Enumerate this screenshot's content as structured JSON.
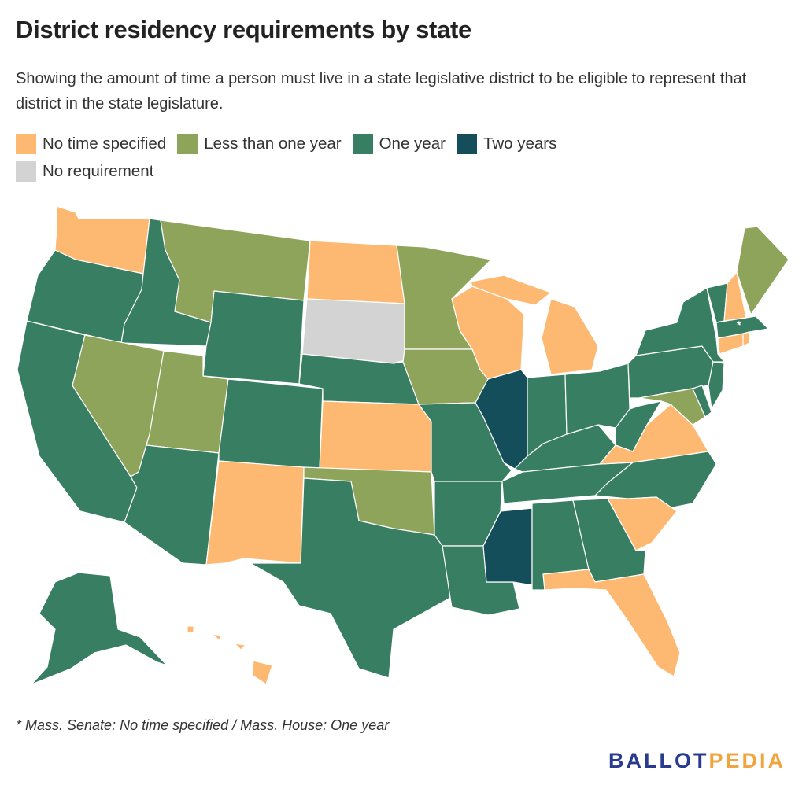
{
  "title": "District residency requirements by state",
  "subtitle": "Showing the amount of time a person must live in a state legislative district to be eligible to represent that district in the state legislature.",
  "legend": [
    {
      "label": "No time specified",
      "color": "#fdb972"
    },
    {
      "label": "Less than one year",
      "color": "#8ea45a"
    },
    {
      "label": "One year",
      "color": "#377e63"
    },
    {
      "label": "Two years",
      "color": "#154e5b"
    },
    {
      "label": "No requirement",
      "color": "#d3d3d3"
    }
  ],
  "map_data": {
    "states": [
      {
        "state": "WA",
        "category": "No time specified"
      },
      {
        "state": "OR",
        "category": "One year"
      },
      {
        "state": "CA",
        "category": "One year"
      },
      {
        "state": "ID",
        "category": "One year"
      },
      {
        "state": "NV",
        "category": "Less than one year"
      },
      {
        "state": "MT",
        "category": "Less than one year"
      },
      {
        "state": "WY",
        "category": "One year"
      },
      {
        "state": "UT",
        "category": "Less than one year"
      },
      {
        "state": "AZ",
        "category": "One year"
      },
      {
        "state": "CO",
        "category": "One year"
      },
      {
        "state": "NM",
        "category": "No time specified"
      },
      {
        "state": "ND",
        "category": "No time specified"
      },
      {
        "state": "SD",
        "category": "No requirement"
      },
      {
        "state": "NE",
        "category": "One year"
      },
      {
        "state": "KS",
        "category": "No time specified"
      },
      {
        "state": "OK",
        "category": "Less than one year"
      },
      {
        "state": "TX",
        "category": "One year"
      },
      {
        "state": "MN",
        "category": "Less than one year"
      },
      {
        "state": "IA",
        "category": "Less than one year"
      },
      {
        "state": "MO",
        "category": "One year"
      },
      {
        "state": "AR",
        "category": "One year"
      },
      {
        "state": "LA",
        "category": "One year"
      },
      {
        "state": "WI",
        "category": "No time specified"
      },
      {
        "state": "IL",
        "category": "Two years"
      },
      {
        "state": "MS",
        "category": "Two years"
      },
      {
        "state": "MI",
        "category": "No time specified"
      },
      {
        "state": "IN",
        "category": "One year"
      },
      {
        "state": "KY",
        "category": "One year"
      },
      {
        "state": "TN",
        "category": "One year"
      },
      {
        "state": "AL",
        "category": "One year"
      },
      {
        "state": "OH",
        "category": "One year"
      },
      {
        "state": "WV",
        "category": "One year"
      },
      {
        "state": "VA",
        "category": "No time specified"
      },
      {
        "state": "NC",
        "category": "One year"
      },
      {
        "state": "SC",
        "category": "No time specified"
      },
      {
        "state": "GA",
        "category": "One year"
      },
      {
        "state": "FL",
        "category": "No time specified"
      },
      {
        "state": "PA",
        "category": "One year"
      },
      {
        "state": "NY",
        "category": "One year"
      },
      {
        "state": "MD",
        "category": "Less than one year"
      },
      {
        "state": "DE",
        "category": "One year"
      },
      {
        "state": "NJ",
        "category": "One year"
      },
      {
        "state": "CT",
        "category": "No time specified"
      },
      {
        "state": "RI",
        "category": "No time specified"
      },
      {
        "state": "MA",
        "category": "One year"
      },
      {
        "state": "VT",
        "category": "One year"
      },
      {
        "state": "NH",
        "category": "No time specified"
      },
      {
        "state": "ME",
        "category": "Less than one year"
      },
      {
        "state": "AK",
        "category": "One year"
      },
      {
        "state": "HI",
        "category": "No time specified"
      }
    ],
    "marker": "*"
  },
  "note": "* Mass. Senate: No time specified / Mass. House: One year",
  "logo": {
    "part1": "BALLOT",
    "part2": "PEDIA"
  }
}
